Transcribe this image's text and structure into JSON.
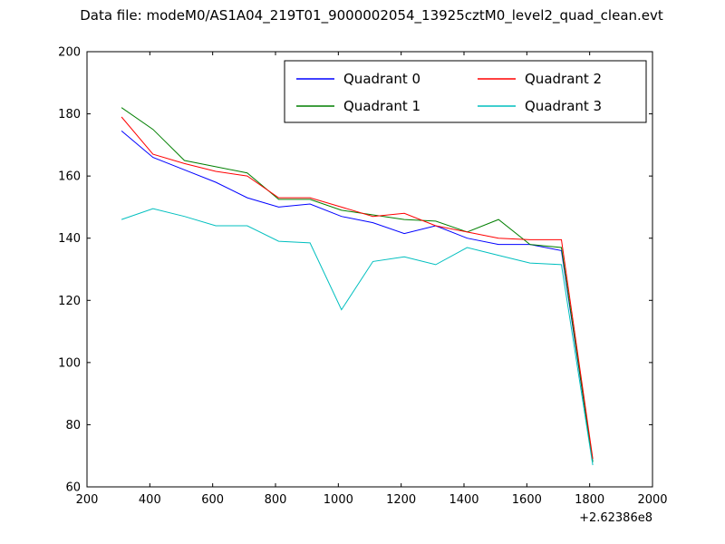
{
  "title": "Data file: modeM0/AS1A04_219T01_9000002054_13925cztM0_level2_quad_clean.evt",
  "chart_data": {
    "type": "line",
    "x": [
      310,
      410,
      510,
      610,
      710,
      810,
      910,
      1010,
      1110,
      1210,
      1310,
      1410,
      1510,
      1610,
      1710,
      1810
    ],
    "series": [
      {
        "name": "Quadrant 0",
        "color": "#0000ff",
        "values": [
          174.5,
          166,
          162,
          158,
          153,
          150,
          151,
          147,
          145,
          141.5,
          144,
          140,
          138,
          138,
          136,
          68
        ]
      },
      {
        "name": "Quadrant 1",
        "color": "#007f00",
        "values": [
          182,
          175,
          165,
          163,
          161,
          152.5,
          152.5,
          149,
          147.5,
          146,
          145.5,
          142,
          146,
          138,
          137,
          68
        ]
      },
      {
        "name": "Quadrant 2",
        "color": "#ff0000",
        "values": [
          179,
          167,
          164,
          161.5,
          160,
          153,
          153,
          150,
          147,
          148,
          144,
          142,
          140,
          139.5,
          139.5,
          69
        ]
      },
      {
        "name": "Quadrant 3",
        "color": "#00bfbf",
        "values": [
          146,
          149.5,
          147,
          144,
          144,
          139,
          138.5,
          117,
          132.5,
          134,
          131.5,
          137,
          134.5,
          132,
          131.5,
          67
        ]
      }
    ],
    "xlim": [
      200,
      2000
    ],
    "ylim": [
      60,
      200
    ],
    "xticks": [
      200,
      400,
      600,
      800,
      1000,
      1200,
      1400,
      1600,
      1800,
      2000
    ],
    "yticks": [
      60,
      80,
      100,
      120,
      140,
      160,
      180,
      200
    ],
    "x_offset_label": "+2.62386e8",
    "grid": false,
    "legend": {
      "position": "upper center",
      "ncol": 2,
      "entries": [
        "Quadrant 0",
        "Quadrant 1",
        "Quadrant 2",
        "Quadrant 3"
      ]
    },
    "axis_color": "#000000",
    "background": "#ffffff"
  }
}
